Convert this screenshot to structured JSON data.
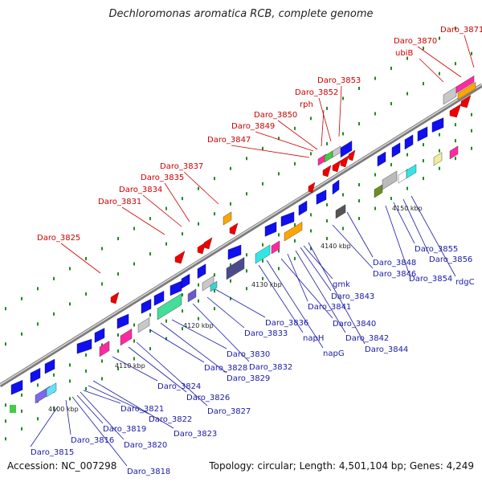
{
  "title": "Dechloromonas aromatica RCB, complete genome",
  "footer": {
    "accession": "Accession: NC_007298",
    "topology": "Topology: circular; Length: 4,501,104 bp; Genes: 4,249"
  },
  "colors": {
    "forward_label": "#cc0000",
    "reverse_label": "#1a1aa6",
    "backbone": "#8c8c8c",
    "forward_gene": "#ee0000",
    "reverse_gene": "#1010ee",
    "tick": "#1f8a1f"
  },
  "ruler": [
    {
      "label": "4100 kbp"
    },
    {
      "label": "4110 kbp"
    },
    {
      "label": "4120 kbp"
    },
    {
      "label": "4130 kbp"
    },
    {
      "label": "4140 kbp"
    },
    {
      "label": "4150 kbp"
    }
  ],
  "forward_labels": [
    "Daro_3871",
    "Daro_3870",
    "ubiB",
    "Daro_3853",
    "Daro_3852",
    "rph",
    "Daro_3850",
    "Daro_3849",
    "Daro_3847",
    "Daro_3837",
    "Daro_3835",
    "Daro_3834",
    "Daro_3831",
    "Daro_3825"
  ],
  "reverse_labels": [
    "Daro_3815",
    "Daro_3816",
    "Daro_3818",
    "Daro_3819",
    "Daro_3820",
    "Daro_3821",
    "Daro_3822",
    "Daro_3823",
    "Daro_3824",
    "Daro_3826",
    "Daro_3827",
    "Daro_3828",
    "Daro_3829",
    "Daro_3830",
    "Daro_3832",
    "Daro_3833",
    "Daro_3836",
    "napH",
    "napG",
    "Daro_3840",
    "Daro_3841",
    "Daro_3842",
    "Daro_3843",
    "gmk",
    "Daro_3844",
    "Daro_3846",
    "Daro_3848",
    "Daro_3854",
    "Daro_3855",
    "Daro_3856",
    "rdgC"
  ]
}
